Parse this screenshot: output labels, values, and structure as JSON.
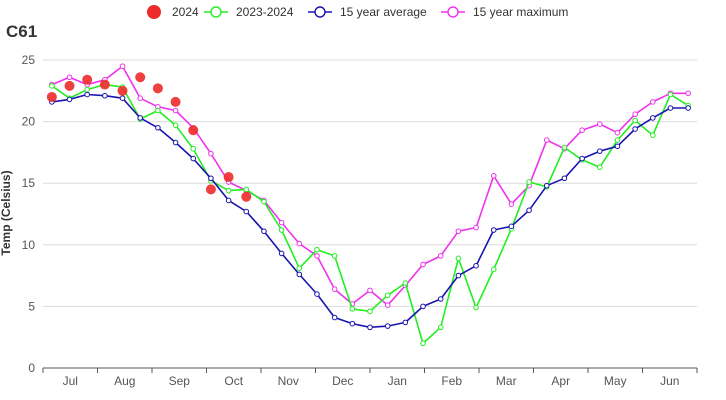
{
  "chart_data": {
    "type": "line",
    "title": "C61",
    "ylabel": "Temp (Celsius)",
    "ylim": [
      0,
      25
    ],
    "yticks": [
      0,
      5,
      10,
      15,
      20,
      25
    ],
    "grid": "horizontal",
    "legend_position": "top",
    "months": [
      "Jul",
      "Aug",
      "Sep",
      "Oct",
      "Nov",
      "Dec",
      "Jan",
      "Feb",
      "Mar",
      "Apr",
      "May",
      "Jun"
    ],
    "x_count": 37,
    "series": [
      {
        "name": "2024",
        "style": "dots",
        "color": "#ee2a2a",
        "values": [
          22.0,
          22.9,
          23.4,
          23.0,
          22.5,
          23.6,
          22.7,
          21.6,
          19.3,
          14.5,
          15.5,
          13.9
        ]
      },
      {
        "name": "2023-2024",
        "style": "line",
        "color": "#22ee22",
        "values": [
          22.9,
          21.9,
          22.6,
          23.0,
          22.8,
          20.2,
          20.9,
          19.7,
          17.8,
          15.2,
          14.4,
          14.5,
          13.5,
          11.2,
          8.1,
          9.6,
          9.1,
          4.8,
          4.6,
          5.9,
          6.9,
          2.0,
          3.3,
          8.9,
          4.9,
          8.0,
          11.3,
          15.1,
          14.7,
          17.9,
          16.9,
          16.3,
          18.5,
          20.1,
          18.9,
          22.2,
          21.3
        ]
      },
      {
        "name": "15 year average",
        "style": "line",
        "color": "#1a14b0",
        "values": [
          21.6,
          21.8,
          22.2,
          22.1,
          21.9,
          20.3,
          19.5,
          18.3,
          17.0,
          15.4,
          13.6,
          12.7,
          11.1,
          9.3,
          7.6,
          6.0,
          4.1,
          3.6,
          3.3,
          3.4,
          3.7,
          5.0,
          5.6,
          7.5,
          8.3,
          11.2,
          11.5,
          12.8,
          14.8,
          15.4,
          17.0,
          17.6,
          18.0,
          19.4,
          20.3,
          21.1,
          21.1
        ]
      },
      {
        "name": "15 year maximum",
        "style": "line",
        "color": "#ee33ee",
        "values": [
          23.0,
          23.6,
          23.0,
          23.4,
          24.5,
          21.9,
          21.2,
          20.9,
          19.5,
          17.4,
          15.1,
          14.4,
          13.6,
          11.8,
          10.1,
          9.1,
          6.4,
          5.2,
          6.3,
          5.1,
          6.7,
          8.4,
          9.1,
          11.1,
          11.4,
          15.6,
          13.3,
          14.8,
          18.5,
          17.8,
          19.3,
          19.8,
          19.1,
          20.6,
          21.6,
          22.3,
          22.3
        ]
      }
    ]
  }
}
